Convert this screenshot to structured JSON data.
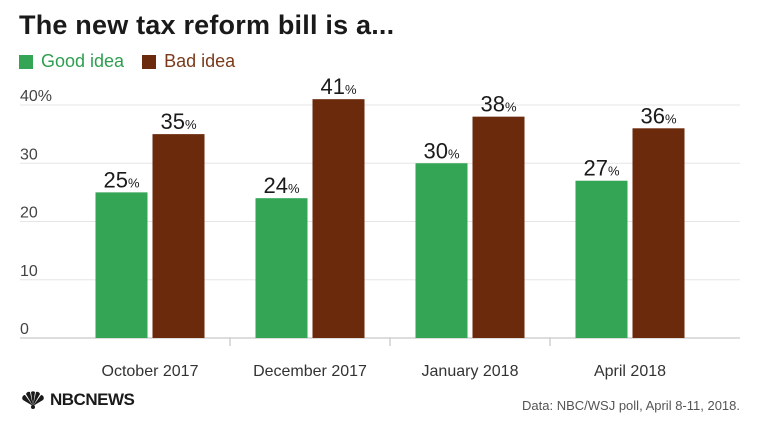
{
  "title": "The new tax reform bill is a...",
  "source": "Data: NBC/WSJ poll, April 8-11, 2018.",
  "logo_text": "NBCNEWS",
  "colors": {
    "good": "#33a555",
    "bad": "#6b2a0b",
    "good_text": "#2e9e50",
    "bad_text": "#7a3a1a"
  },
  "chart_data": {
    "type": "bar",
    "title": "The new tax reform bill is a...",
    "categories": [
      "October 2017",
      "December 2017",
      "January 2018",
      "April 2018"
    ],
    "series": [
      {
        "name": "Good idea",
        "values": [
          25,
          24,
          30,
          27
        ],
        "color": "#33a555"
      },
      {
        "name": "Bad idea",
        "values": [
          35,
          41,
          38,
          36
        ],
        "color": "#6b2a0b"
      }
    ],
    "value_suffix": "%",
    "yticks": [
      "0",
      "10",
      "20",
      "30",
      "40%"
    ],
    "ylim": [
      0,
      40
    ],
    "grid": true,
    "legend": "top-left"
  }
}
